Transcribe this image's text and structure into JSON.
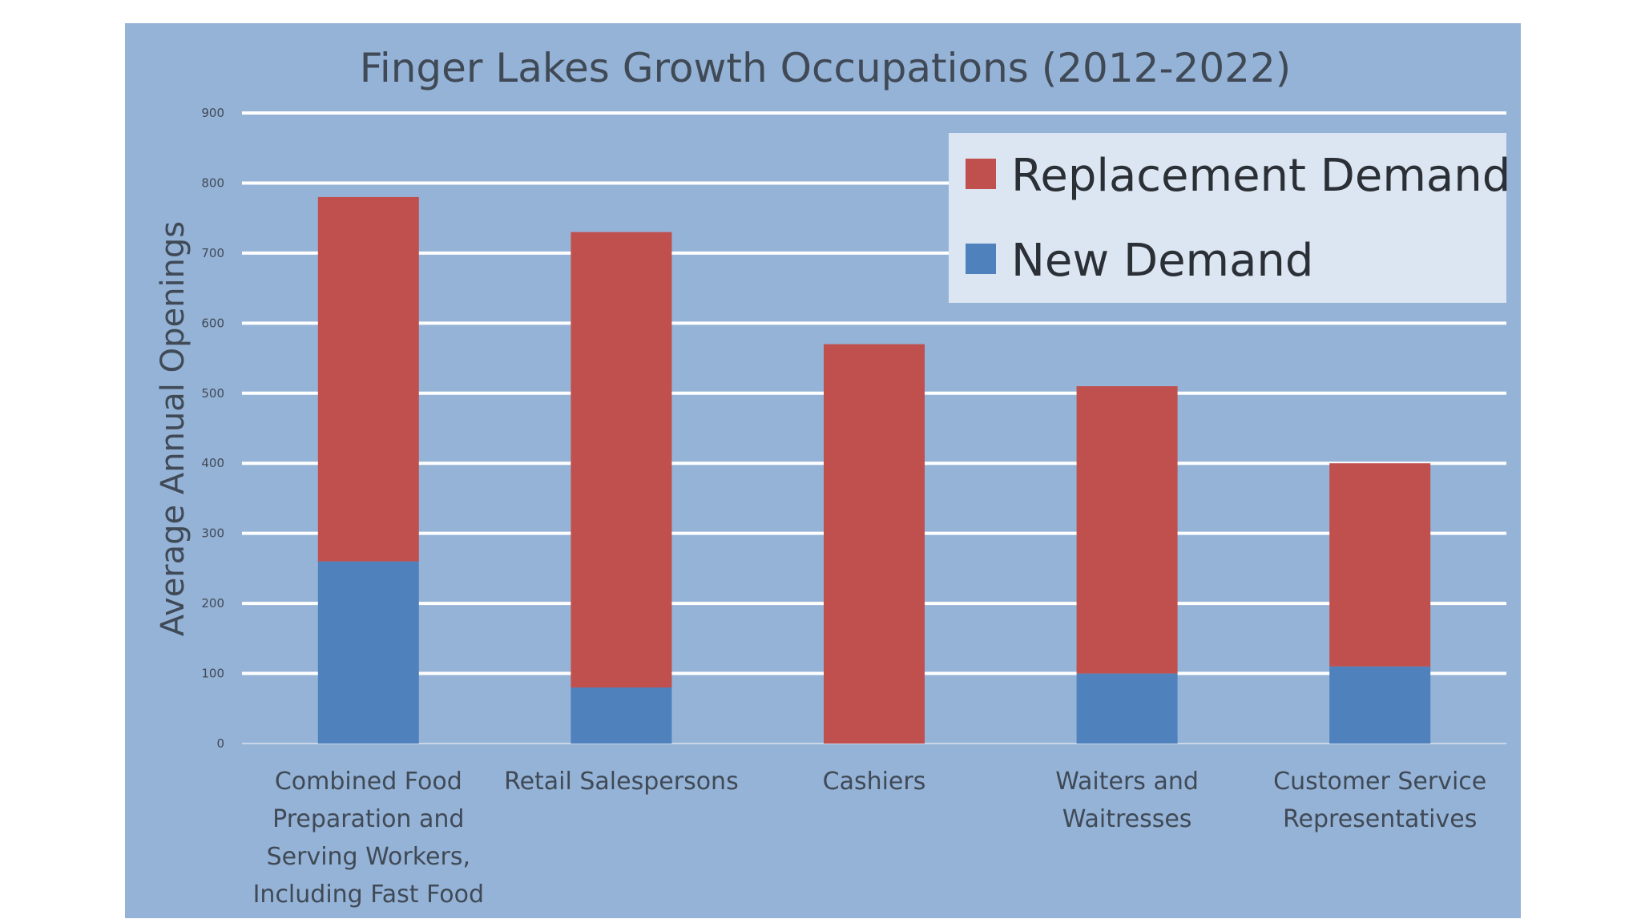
{
  "chart_data": {
    "type": "bar",
    "stacked": true,
    "title": "Finger Lakes Growth Occupations (2012-2022)",
    "xlabel": "",
    "ylabel": "Average Annual Openings",
    "ylim": [
      0,
      900
    ],
    "yticks": [
      0,
      100,
      200,
      300,
      400,
      500,
      600,
      700,
      800,
      900
    ],
    "grid": true,
    "legend_position": "top-right",
    "categories": [
      [
        "Combined Food",
        "Preparation and",
        "Serving Workers,",
        "Including Fast Food"
      ],
      [
        "Retail Salespersons"
      ],
      [
        "Cashiers"
      ],
      [
        "Waiters and",
        "Waitresses"
      ],
      [
        "Customer Service",
        "Representatives"
      ]
    ],
    "series": [
      {
        "name": "New Demand",
        "color": "#4f81bd",
        "values": [
          260,
          80,
          0,
          100,
          110
        ]
      },
      {
        "name": "Replacement Demand",
        "color": "#c0504d",
        "values": [
          520,
          650,
          570,
          410,
          290
        ]
      }
    ],
    "legend_order": [
      "Replacement Demand",
      "New Demand"
    ],
    "colors": {
      "panel_background": "#95b3d7",
      "gridline": "#ffffff",
      "legend_background": "#dce6f2",
      "text": "#404a56"
    }
  }
}
